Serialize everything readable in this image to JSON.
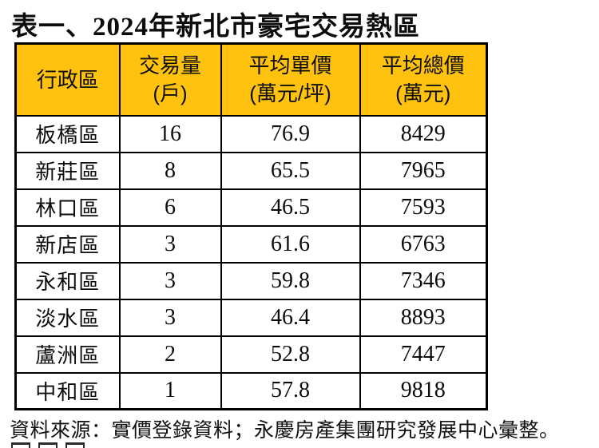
{
  "title": "表一、2024年新北市豪宅交易熱區",
  "table": {
    "header_bg": "#FFC20E",
    "border_color": "#000000",
    "header": [
      {
        "label": "行政區",
        "sub": ""
      },
      {
        "label": "交易量",
        "sub": "(戶)"
      },
      {
        "label": "平均單價",
        "sub": "(萬元/坪)"
      },
      {
        "label": "平均總價",
        "sub": "(萬元)"
      }
    ]
  },
  "chart_data": {
    "type": "table",
    "title": "表一、2024年新北市豪宅交易熱區",
    "columns": [
      "行政區",
      "交易量(戶)",
      "平均單價(萬元/坪)",
      "平均總價(萬元)"
    ],
    "rows": [
      [
        "板橋區",
        "16",
        "76.9",
        "8429"
      ],
      [
        "新莊區",
        "8",
        "65.5",
        "7965"
      ],
      [
        "林口區",
        "6",
        "46.5",
        "7593"
      ],
      [
        "新店區",
        "3",
        "61.6",
        "6763"
      ],
      [
        "永和區",
        "3",
        "59.8",
        "7346"
      ],
      [
        "淡水區",
        "3",
        "46.4",
        "8893"
      ],
      [
        "蘆洲區",
        "2",
        "52.8",
        "7447"
      ],
      [
        "中和區",
        "1",
        "57.8",
        "9818"
      ]
    ],
    "source_note": "資料來源：實價登錄資料；永慶房產集團研究發展中心彙整。"
  }
}
